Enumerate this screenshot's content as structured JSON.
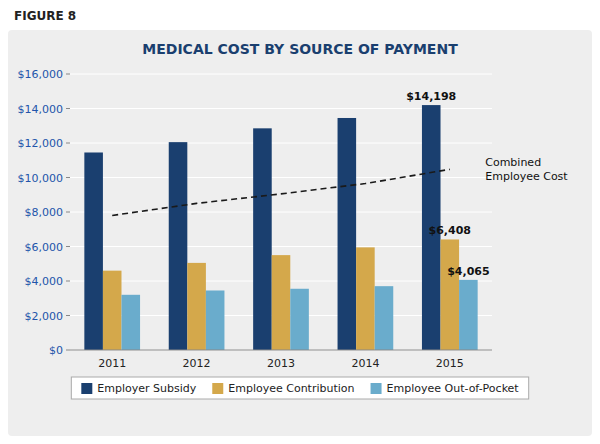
{
  "chart_data": {
    "type": "bar",
    "title": "MEDICAL COST BY SOURCE OF PAYMENT",
    "annotations": [
      "FIGURE 8"
    ],
    "categories": [
      "2011",
      "2012",
      "2013",
      "2014",
      "2015"
    ],
    "series": [
      {
        "name": "Employer Subsidy",
        "type": "bar",
        "color": "#1a3f6f",
        "values": [
          11450,
          12050,
          12850,
          13450,
          14198
        ],
        "value_labels": [
          null,
          null,
          null,
          null,
          "$14,198"
        ]
      },
      {
        "name": "Employee Contribution",
        "type": "bar",
        "color": "#d4a84b",
        "values": [
          4600,
          5050,
          5500,
          5950,
          6408
        ],
        "value_labels": [
          null,
          null,
          null,
          null,
          "$6,408"
        ]
      },
      {
        "name": "Employee Out-of-Pocket",
        "type": "bar",
        "color": "#6aaccc",
        "values": [
          3200,
          3450,
          3550,
          3700,
          4065
        ],
        "value_labels": [
          null,
          null,
          null,
          null,
          "$4,065"
        ]
      },
      {
        "name": "Combined\nEmployee Cost",
        "type": "line",
        "color": "#1a1a1a",
        "line_style": "dashed",
        "values": [
          7800,
          8500,
          9050,
          9650,
          10473
        ]
      }
    ],
    "ylim": [
      0,
      16000
    ],
    "yticks": [
      {
        "value": 0,
        "label": "$0"
      },
      {
        "value": 2000,
        "label": "$2,000"
      },
      {
        "value": 4000,
        "label": "$4,000"
      },
      {
        "value": 6000,
        "label": "$6,000"
      },
      {
        "value": 8000,
        "label": "$8,000"
      },
      {
        "value": 10000,
        "label": "$10,000"
      },
      {
        "value": 12000,
        "label": "$12,000"
      },
      {
        "value": 14000,
        "label": "$14,000"
      },
      {
        "value": 16000,
        "label": "$16,000"
      }
    ],
    "grid": true,
    "legend": "bottom"
  }
}
